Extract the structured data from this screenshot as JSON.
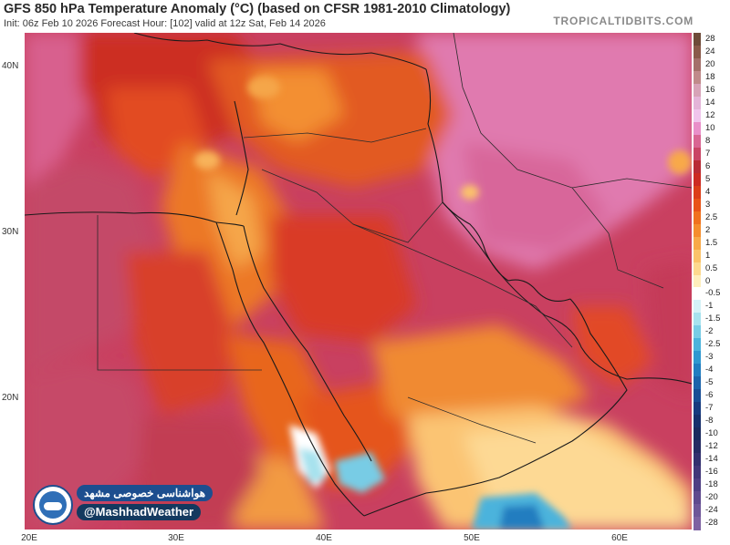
{
  "header": {
    "title": "GFS 850 hPa Temperature Anomaly (°C) (based on CFSR 1981-2010 Climatology)",
    "subtitle": "Init: 06z Feb 10 2026   Forecast Hour: [102]   valid at 12z Sat, Feb 14 2026",
    "brand": "TROPICALTIDBITS.COM"
  },
  "map": {
    "lat_labels": [
      "40N",
      "30N",
      "20N"
    ],
    "lon_labels": [
      "20E",
      "30E",
      "40E",
      "50E",
      "60E"
    ],
    "extent": {
      "lon": [
        20,
        65
      ],
      "lat": [
        12.5,
        42.5
      ]
    }
  },
  "colorbar": {
    "labels": [
      "28",
      "24",
      "20",
      "18",
      "16",
      "14",
      "12",
      "10",
      "8",
      "7",
      "6",
      "5",
      "4",
      "3",
      "2.5",
      "2",
      "1.5",
      "1",
      "0.5",
      "0",
      "-0.5",
      "-1",
      "-1.5",
      "-2",
      "-2.5",
      "-3",
      "-4",
      "-5",
      "-6",
      "-7",
      "-8",
      "-10",
      "-12",
      "-14",
      "-16",
      "-18",
      "-20",
      "-24",
      "-28"
    ],
    "colors": [
      "#6e4b39",
      "#8a5a4a",
      "#a4706a",
      "#c08a8a",
      "#d7a3b7",
      "#e4b4d8",
      "#f0c4ec",
      "#e98fc9",
      "#d96593",
      "#c94565",
      "#b82b35",
      "#cc2a22",
      "#dc3d18",
      "#e85318",
      "#f0711e",
      "#f58d2d",
      "#f8a948",
      "#fbc36a",
      "#fdd98e",
      "#feeebc",
      "#ffffff",
      "#d4f2f7",
      "#a7e2ee",
      "#78cce5",
      "#4bb3dc",
      "#2f98d0",
      "#217dc0",
      "#1b64ab",
      "#184e95",
      "#173b7f",
      "#16306c",
      "#1a2a5e",
      "#252b63",
      "#32306e",
      "#413779",
      "#4f3f84",
      "#5f4a8e",
      "#6e5698",
      "#7e62a2"
    ]
  },
  "watermark": {
    "persian_text": "هواشناسی خصوصی مشهد",
    "handle": "@MashhadWeather"
  }
}
